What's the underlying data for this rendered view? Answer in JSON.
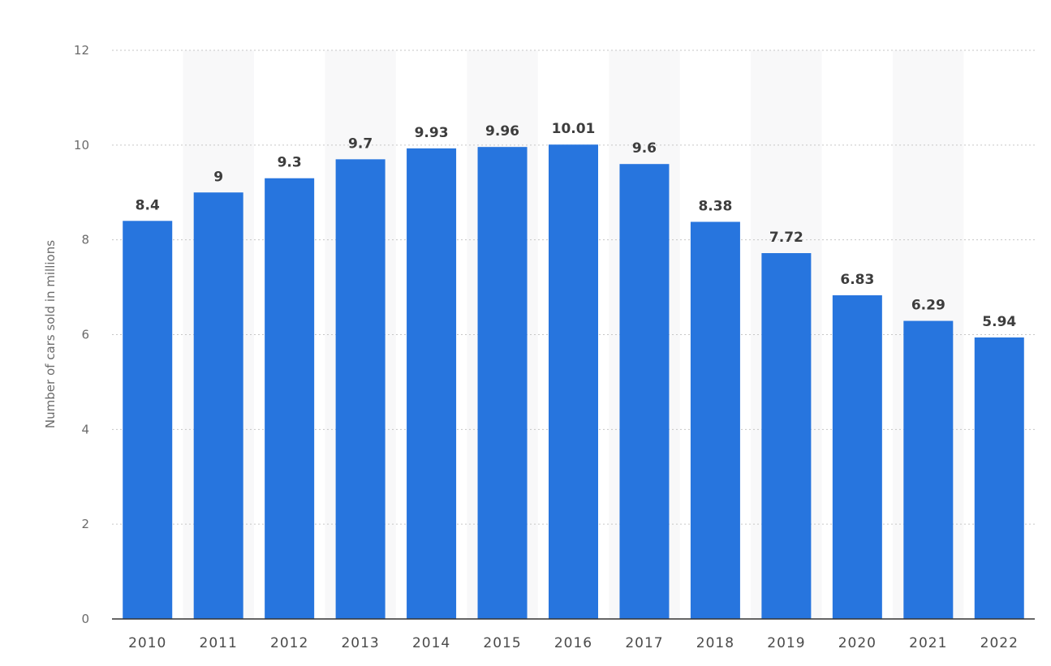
{
  "chart_data": {
    "type": "bar",
    "title": "",
    "xlabel": "",
    "ylabel": "Number of cars sold in millions",
    "ylim": [
      0,
      12
    ],
    "yticks": [
      0,
      2,
      4,
      6,
      8,
      10,
      12
    ],
    "grid": true,
    "legend": "none",
    "categories": [
      "2010",
      "2011",
      "2012",
      "2013",
      "2014",
      "2015",
      "2016",
      "2017",
      "2018",
      "2019",
      "2020",
      "2021",
      "2022"
    ],
    "values": [
      8.4,
      9,
      9.3,
      9.7,
      9.93,
      9.96,
      10.01,
      9.6,
      8.38,
      7.72,
      6.83,
      6.29,
      5.94
    ],
    "data_labels": [
      "8.4",
      "9",
      "9.3",
      "9.7",
      "9.93",
      "9.96",
      "10.01",
      "9.6",
      "8.38",
      "7.72",
      "6.83",
      "6.29",
      "5.94"
    ],
    "colors": {
      "bar": "#2775de",
      "band": "#f8f8f9",
      "grid": "#c6c6c6",
      "axis": "#333333"
    }
  }
}
